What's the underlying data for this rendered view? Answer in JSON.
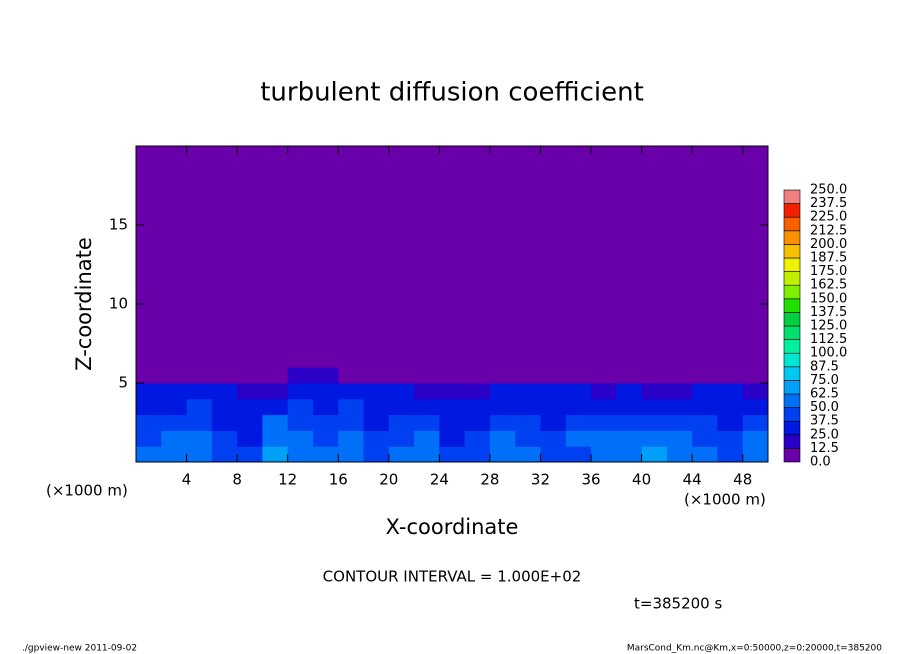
{
  "chart_data": {
    "type": "heatmap",
    "title": "turbulent diffusion coefficient",
    "x_label": "X-coordinate",
    "y_label": "Z-coordinate",
    "x_unit_label": "(×1000 m)",
    "y_unit_label": "(×1000 m)",
    "annotation": "CONTOUR INTERVAL = 1.000E+02",
    "time_label": "t=385200 s",
    "footer_left": "./gpview-new  2011-09-02",
    "footer_right": "MarsCond_Km.nc@Km,x=0:50000,z=0:20000,t=385200",
    "xlim": [
      0,
      50
    ],
    "ylim": [
      0,
      20
    ],
    "xticks": [
      4,
      8,
      12,
      16,
      20,
      24,
      28,
      32,
      36,
      40,
      44,
      48
    ],
    "yticks": [
      5,
      10,
      15
    ],
    "x_edges": [
      0,
      2,
      4,
      6,
      8,
      10,
      12,
      14,
      16,
      18,
      20,
      22,
      24,
      26,
      28,
      30,
      32,
      34,
      36,
      38,
      40,
      42,
      44,
      46,
      48,
      50
    ],
    "z_edges": [
      0,
      1,
      2,
      3,
      4,
      5,
      6,
      8,
      10,
      15,
      20
    ],
    "z": [
      [
        50,
        60,
        55,
        45,
        40,
        65,
        55,
        50,
        60,
        45,
        50,
        55,
        40,
        45,
        55,
        50,
        45,
        40,
        50,
        60,
        65,
        55,
        50,
        45,
        60
      ],
      [
        45,
        55,
        50,
        40,
        35,
        60,
        50,
        45,
        55,
        40,
        45,
        50,
        35,
        40,
        50,
        45,
        40,
        50,
        55,
        60,
        55,
        50,
        45,
        40,
        55
      ],
      [
        40,
        45,
        45,
        35,
        30,
        50,
        45,
        40,
        45,
        35,
        40,
        45,
        30,
        35,
        40,
        40,
        35,
        40,
        45,
        45,
        40,
        45,
        40,
        35,
        45
      ],
      [
        35,
        35,
        40,
        30,
        25,
        35,
        40,
        35,
        40,
        30,
        35,
        35,
        25,
        30,
        35,
        35,
        30,
        30,
        35,
        35,
        30,
        35,
        35,
        30,
        35
      ],
      [
        25,
        30,
        30,
        25,
        20,
        20,
        25,
        30,
        30,
        25,
        25,
        20,
        15,
        20,
        25,
        25,
        30,
        25,
        20,
        25,
        15,
        20,
        25,
        25,
        20
      ],
      [
        0,
        0,
        0,
        0,
        0,
        5,
        15,
        20,
        10,
        5,
        0,
        0,
        0,
        0,
        0,
        5,
        5,
        5,
        0,
        0,
        0,
        0,
        5,
        5,
        0
      ],
      [
        0,
        5,
        0,
        5,
        5,
        0,
        5,
        5,
        0,
        5,
        0,
        0,
        0,
        0,
        0,
        0,
        5,
        0,
        0,
        0,
        0,
        0,
        0,
        0,
        0
      ],
      [
        0,
        0,
        5,
        5,
        0,
        0,
        0,
        0,
        0,
        0,
        0,
        0,
        0,
        0,
        0,
        0,
        0,
        0,
        0,
        0,
        0,
        0,
        0,
        0,
        0
      ],
      [
        0,
        0,
        0,
        0,
        0,
        0,
        0,
        0,
        0,
        0,
        0,
        0,
        0,
        0,
        0,
        0,
        0,
        0,
        0,
        0,
        0,
        0,
        0,
        0,
        0
      ],
      [
        0,
        0,
        0,
        0,
        0,
        0,
        0,
        0,
        0,
        0,
        0,
        0,
        0,
        0,
        0,
        0,
        0,
        0,
        0,
        0,
        0,
        0,
        0,
        0,
        0
      ]
    ],
    "levels": [
      {
        "value": 0,
        "label": "0.0"
      },
      {
        "value": 12.5,
        "label": "12.5"
      },
      {
        "value": 25,
        "label": "25.0"
      },
      {
        "value": 37.5,
        "label": "37.5"
      },
      {
        "value": 50,
        "label": "50.0"
      },
      {
        "value": 62.5,
        "label": "62.5"
      },
      {
        "value": 75,
        "label": "75.0"
      },
      {
        "value": 87.5,
        "label": "87.5"
      },
      {
        "value": 100,
        "label": "100.0"
      },
      {
        "value": 112.5,
        "label": "112.5"
      },
      {
        "value": 125,
        "label": "125.0"
      },
      {
        "value": 137.5,
        "label": "137.5"
      },
      {
        "value": 150,
        "label": "150.0"
      },
      {
        "value": 162.5,
        "label": "162.5"
      },
      {
        "value": 175,
        "label": "175.0"
      },
      {
        "value": 187.5,
        "label": "187.5"
      },
      {
        "value": 200,
        "label": "200.0"
      },
      {
        "value": 212.5,
        "label": "212.5"
      },
      {
        "value": 225,
        "label": "225.0"
      },
      {
        "value": 237.5,
        "label": "237.5"
      },
      {
        "value": 250,
        "label": "250.0"
      }
    ],
    "colors": [
      "#6a00aa",
      "#2a00c8",
      "#0018e0",
      "#0040f0",
      "#0070f8",
      "#00a0f8",
      "#00c8f0",
      "#00e8d0",
      "#00f0a0",
      "#00e070",
      "#00d040",
      "#20e000",
      "#80f000",
      "#c0f000",
      "#f0f000",
      "#f8c000",
      "#f89000",
      "#f86000",
      "#f02000",
      "#f08080"
    ]
  }
}
